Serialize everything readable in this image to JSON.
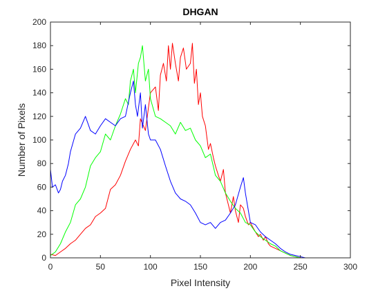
{
  "chart_data": {
    "type": "line",
    "title": "DHGAN",
    "xlabel": "Pixel Intensity",
    "ylabel": "Number of Pixels",
    "xlim": [
      0,
      300
    ],
    "ylim": [
      0,
      200
    ],
    "xticks": [
      0,
      50,
      100,
      150,
      200,
      250,
      300
    ],
    "yticks": [
      0,
      20,
      40,
      60,
      80,
      100,
      120,
      140,
      160,
      180,
      200
    ],
    "grid": false,
    "legend": "none",
    "series": [
      {
        "color": "#ff0000",
        "x": [
          0,
          5,
          10,
          15,
          20,
          25,
          30,
          35,
          40,
          45,
          50,
          55,
          60,
          65,
          70,
          75,
          80,
          85,
          88,
          90,
          95,
          100,
          105,
          108,
          110,
          113,
          116,
          118,
          120,
          122,
          125,
          128,
          130,
          133,
          136,
          140,
          142,
          144,
          146,
          148,
          150,
          152,
          155,
          158,
          160,
          163,
          165,
          168,
          170,
          173,
          175,
          178,
          180,
          183,
          185,
          188,
          190,
          193,
          195,
          198,
          200,
          203,
          205,
          208,
          210,
          213,
          215,
          218,
          220,
          225,
          230,
          235,
          240,
          245,
          250,
          255
        ],
        "y": [
          3,
          2,
          5,
          8,
          12,
          15,
          20,
          25,
          28,
          35,
          38,
          42,
          58,
          62,
          70,
          82,
          92,
          100,
          95,
          118,
          108,
          140,
          145,
          125,
          155,
          165,
          150,
          180,
          160,
          182,
          165,
          150,
          170,
          178,
          160,
          165,
          182,
          148,
          160,
          130,
          140,
          120,
          112,
          92,
          97,
          85,
          78,
          70,
          65,
          75,
          55,
          45,
          38,
          52,
          40,
          30,
          45,
          42,
          35,
          28,
          30,
          25,
          22,
          18,
          20,
          15,
          18,
          12,
          10,
          8,
          6,
          4,
          2,
          1,
          0,
          0
        ]
      },
      {
        "color": "#00ff00",
        "x": [
          0,
          5,
          10,
          15,
          20,
          25,
          30,
          35,
          40,
          45,
          50,
          55,
          60,
          65,
          70,
          75,
          78,
          80,
          83,
          85,
          88,
          90,
          92,
          95,
          98,
          100,
          105,
          110,
          115,
          120,
          125,
          130,
          135,
          140,
          145,
          150,
          155,
          160,
          165,
          170,
          175,
          180,
          185,
          190,
          195,
          200,
          205,
          210,
          215,
          220,
          225,
          230,
          235,
          240,
          245,
          250,
          255
        ],
        "y": [
          2,
          5,
          12,
          22,
          30,
          45,
          50,
          60,
          78,
          85,
          90,
          105,
          100,
          112,
          122,
          135,
          130,
          150,
          160,
          140,
          165,
          170,
          180,
          150,
          160,
          135,
          120,
          118,
          115,
          112,
          105,
          115,
          108,
          110,
          100,
          95,
          85,
          88,
          70,
          65,
          55,
          48,
          42,
          38,
          30,
          28,
          22,
          18,
          15,
          12,
          10,
          6,
          4,
          2,
          1,
          0,
          0
        ]
      },
      {
        "color": "#0000ff",
        "x": [
          0,
          2,
          5,
          8,
          10,
          12,
          15,
          18,
          20,
          25,
          30,
          35,
          40,
          45,
          50,
          55,
          60,
          65,
          70,
          75,
          80,
          83,
          85,
          87,
          90,
          92,
          95,
          98,
          100,
          105,
          110,
          115,
          120,
          125,
          130,
          135,
          140,
          145,
          150,
          155,
          160,
          165,
          170,
          175,
          180,
          185,
          190,
          193,
          195,
          198,
          200,
          205,
          210,
          215,
          220,
          225,
          230,
          235,
          240,
          245,
          250,
          255
        ],
        "y": [
          75,
          60,
          62,
          55,
          58,
          65,
          70,
          80,
          90,
          105,
          110,
          120,
          108,
          105,
          112,
          118,
          115,
          112,
          118,
          120,
          140,
          150,
          130,
          120,
          140,
          110,
          130,
          105,
          100,
          100,
          92,
          78,
          65,
          55,
          50,
          48,
          45,
          38,
          30,
          28,
          30,
          25,
          30,
          32,
          38,
          45,
          60,
          68,
          55,
          40,
          30,
          28,
          22,
          18,
          15,
          12,
          8,
          5,
          3,
          2,
          1,
          0
        ]
      }
    ]
  }
}
